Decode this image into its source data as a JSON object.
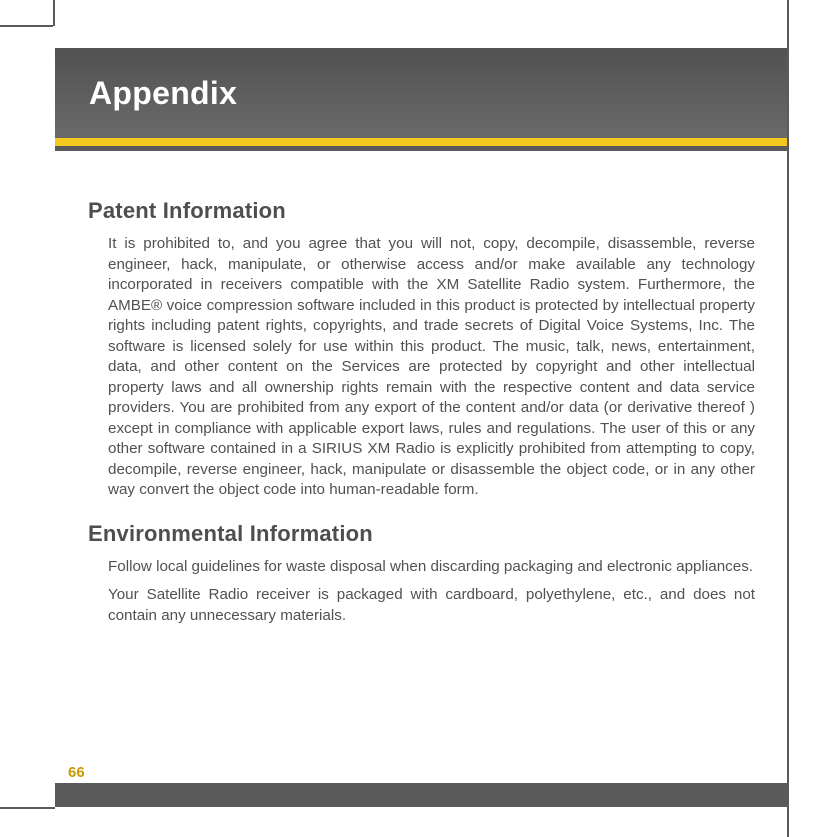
{
  "colors": {
    "header_gradient_top": "#515151",
    "header_gradient_bottom": "#6a6a6a",
    "accent_yellow": "#f4c81e",
    "rule_grey": "#5b5b5b",
    "text_body": "#515151",
    "text_heading": "#4e4e4e",
    "page_number": "#c79a00",
    "footer_bar": "#5a5a5a"
  },
  "typography": {
    "header_title_size": 32,
    "h2_size": 22,
    "body_size": 15.2,
    "page_number_size": 15,
    "font_family": "Arial"
  },
  "header": {
    "title": "Appendix"
  },
  "sections": [
    {
      "heading": "Patent Information",
      "paragraphs": [
        "It is prohibited to, and you agree that you will not, copy, decompile, disassemble, reverse engineer, hack, manipulate, or otherwise access and/or make available any technology incorporated in receivers compatible with the XM Satellite Radio system. Furthermore, the AMBE® voice compression software included in this product is protected by intellectual property rights including patent rights, copyrights, and trade secrets of Digital Voice Systems, Inc. The software is licensed solely for use within this product. The music, talk, news, entertainment, data, and other content on the Services are protected by copyright and other intellectual property laws and all ownership rights remain with the respective content and data service providers. You are prohibited from any export of the content and/or data (or derivative thereof ) except in compliance with applicable export laws, rules and regulations. The user of this or any other software contained in a SIRIUS XM Radio is explicitly prohibited from attempting to copy, decompile, reverse engineer, hack, manipulate or disassemble the object code, or in any other way convert the object code into human-readable form."
      ]
    },
    {
      "heading": "Environmental Information",
      "paragraphs": [
        "Follow local guidelines for waste disposal when discarding packaging and electronic appliances.",
        "Your Satellite Radio receiver is packaged with cardboard, polyethylene, etc., and does not contain any unnecessary materials."
      ]
    }
  ],
  "page_number": "66"
}
